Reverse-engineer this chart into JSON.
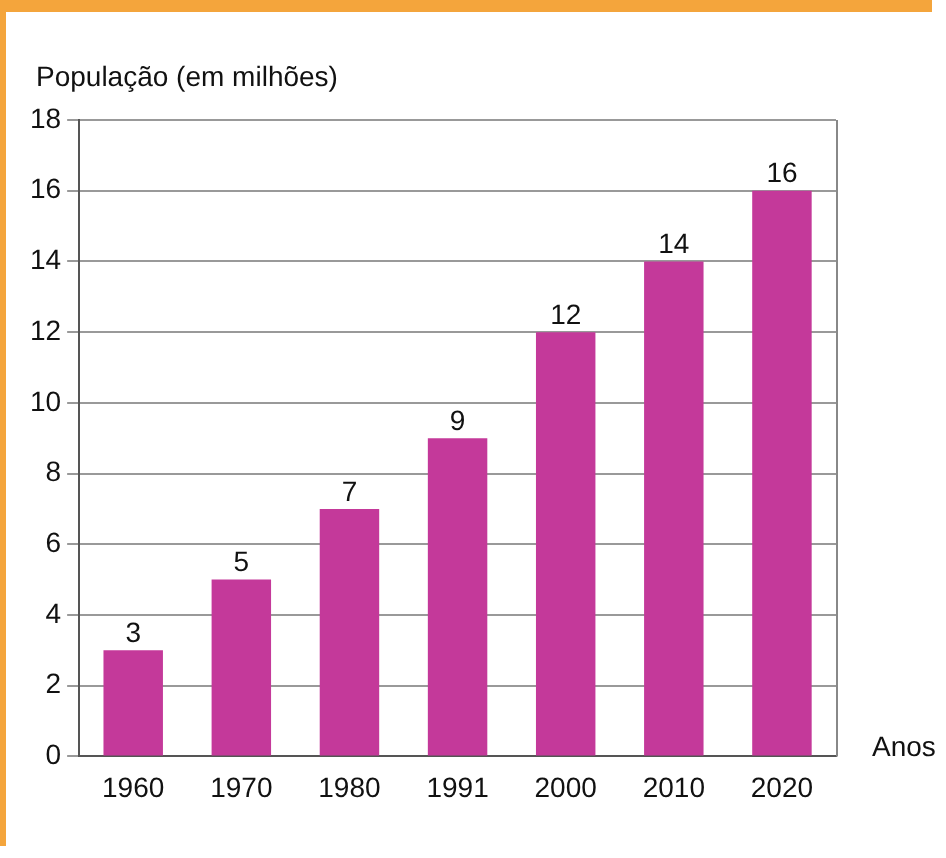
{
  "chart_data": {
    "type": "bar",
    "ylabel": "População (em milhões)",
    "xlabel": "Anos",
    "categories": [
      "1960",
      "1970",
      "1980",
      "1991",
      "2000",
      "2010",
      "2020"
    ],
    "values": [
      3,
      5,
      7,
      9,
      12,
      14,
      16
    ],
    "color": "#c4399a",
    "ylim": [
      0,
      18
    ],
    "yticks": [
      0,
      2,
      4,
      6,
      8,
      10,
      12,
      14,
      16,
      18
    ],
    "grid": "y",
    "data_labels": true
  }
}
